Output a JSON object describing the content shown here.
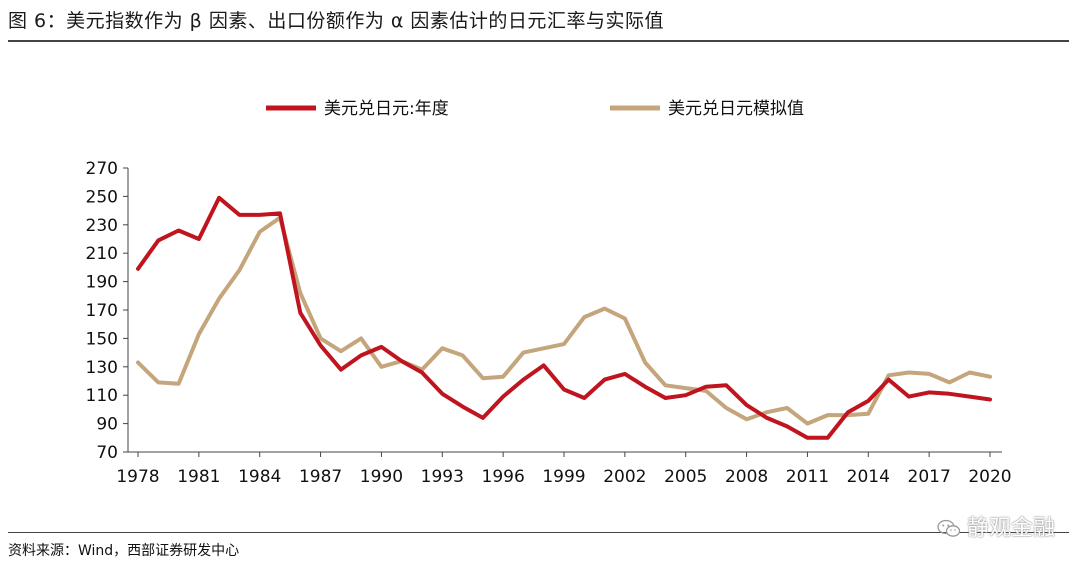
{
  "header": {
    "title": "图 6：美元指数作为 β 因素、出口份额作为 α 因素估计的日元汇率与实际值"
  },
  "footer": {
    "source": "资料来源：Wind，西部证券研发中心",
    "watermark": "静观金融"
  },
  "colors": {
    "actual": "#c0141e",
    "simulated": "#c4a57c",
    "axis": "#444444"
  },
  "chart_data": {
    "type": "line",
    "x": [
      1978,
      1979,
      1980,
      1981,
      1982,
      1983,
      1984,
      1985,
      1986,
      1987,
      1988,
      1989,
      1990,
      1991,
      1992,
      1993,
      1994,
      1995,
      1996,
      1997,
      1998,
      1999,
      2000,
      2001,
      2002,
      2003,
      2004,
      2005,
      2006,
      2007,
      2008,
      2009,
      2010,
      2011,
      2012,
      2013,
      2014,
      2015,
      2016,
      2017,
      2018,
      2019,
      2020
    ],
    "xticks": [
      1978,
      1981,
      1984,
      1987,
      1990,
      1993,
      1996,
      1999,
      2002,
      2005,
      2008,
      2011,
      2014,
      2017,
      2020
    ],
    "yticks": [
      70,
      90,
      110,
      130,
      150,
      170,
      190,
      210,
      230,
      250,
      270
    ],
    "ylim": [
      70,
      270
    ],
    "xlim": [
      1978,
      2020
    ],
    "series": [
      {
        "name": "美元兑日元:年度",
        "color": "#c0141e",
        "values": [
          199,
          219,
          226,
          220,
          249,
          237,
          237,
          238,
          168,
          145,
          128,
          138,
          144,
          134,
          126,
          111,
          102,
          94,
          109,
          121,
          131,
          114,
          108,
          121,
          125,
          116,
          108,
          110,
          116,
          117,
          103,
          94,
          88,
          80,
          80,
          98,
          106,
          121,
          109,
          112,
          111,
          109,
          107
        ]
      },
      {
        "name": "美元兑日元模拟值",
        "color": "#c4a57c",
        "values": [
          133,
          119,
          118,
          153,
          178,
          198,
          225,
          235,
          182,
          150,
          141,
          150,
          130,
          134,
          128,
          143,
          138,
          122,
          123,
          140,
          143,
          146,
          165,
          171,
          164,
          133,
          117,
          115,
          113,
          101,
          93,
          98,
          101,
          90,
          96,
          96,
          97,
          124,
          126,
          125,
          119,
          126,
          123
        ]
      }
    ],
    "legend_position": "top"
  }
}
